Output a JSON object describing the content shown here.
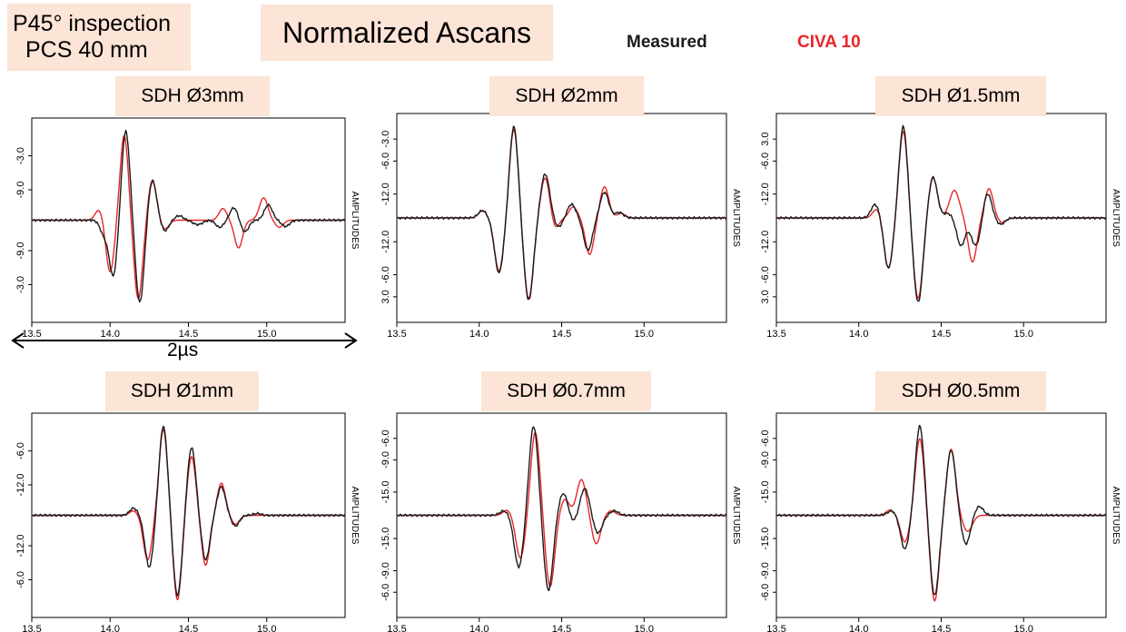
{
  "header": {
    "inspection_line1": "P45° inspection",
    "inspection_line2": "PCS 40 mm",
    "title": "Normalized Ascans"
  },
  "legend": {
    "measured_label": "Measured",
    "measured_color": "#1a1a1a",
    "civa_label": "CIVA 10",
    "civa_color": "#e8262a"
  },
  "scale_bar": {
    "label": "2µs",
    "duration_us": 2
  },
  "chart_data": [
    {
      "type": "line",
      "title": "SDH Ø3mm",
      "ylabel": "AMPLITUDES",
      "xlim": [
        13.5,
        15.5
      ],
      "xticks": [
        "13.5",
        "14.0",
        "14.5",
        "15.0"
      ],
      "yticks": [
        "-3.0",
        "-9.0",
        "-9.0",
        "-3.0"
      ],
      "series": [
        {
          "name": "Measured",
          "pulses": [
            [
              13.96,
              -0.15,
              0.024
            ],
            [
              14.02,
              -0.62,
              0.026
            ],
            [
              14.1,
              1.0,
              0.026
            ],
            [
              14.19,
              -0.92,
              0.027
            ],
            [
              14.27,
              0.45,
              0.026
            ],
            [
              14.35,
              -0.12,
              0.024
            ],
            [
              14.44,
              0.05,
              0.025
            ],
            [
              14.56,
              -0.05,
              0.03
            ],
            [
              14.7,
              -0.08,
              0.025
            ],
            [
              14.79,
              0.14,
              0.025
            ],
            [
              14.86,
              -0.13,
              0.025
            ],
            [
              15.01,
              0.17,
              0.026
            ],
            [
              15.12,
              -0.07,
              0.025
            ]
          ]
        },
        {
          "name": "CIVA 10",
          "pulses": [
            [
              13.93,
              0.12,
              0.025
            ],
            [
              14.0,
              -0.58,
              0.026
            ],
            [
              14.09,
              0.95,
              0.026
            ],
            [
              14.18,
              -0.88,
              0.027
            ],
            [
              14.27,
              0.45,
              0.026
            ],
            [
              14.35,
              -0.1,
              0.025
            ],
            [
              14.72,
              0.13,
              0.025
            ],
            [
              14.82,
              -0.31,
              0.026
            ],
            [
              14.98,
              0.25,
              0.027
            ],
            [
              15.08,
              -0.08,
              0.025
            ]
          ]
        }
      ]
    },
    {
      "type": "line",
      "title": "SDH Ø2mm",
      "ylabel": "AMPLITUDES",
      "xlim": [
        13.5,
        15.5
      ],
      "xticks": [
        "13.5",
        "14.0",
        "14.5",
        "15.0"
      ],
      "yticks": [
        "-3.0",
        "-6.0",
        "-12.0",
        "-12.0",
        "-6.0",
        "3.0"
      ],
      "series": [
        {
          "name": "Measured",
          "pulses": [
            [
              14.02,
              0.08,
              0.025
            ],
            [
              14.12,
              -0.6,
              0.027
            ],
            [
              14.21,
              1.0,
              0.026
            ],
            [
              14.3,
              -0.9,
              0.028
            ],
            [
              14.4,
              0.48,
              0.027
            ],
            [
              14.48,
              -0.1,
              0.024
            ],
            [
              14.56,
              0.15,
              0.025
            ],
            [
              14.66,
              -0.35,
              0.026
            ],
            [
              14.76,
              0.28,
              0.026
            ],
            [
              14.85,
              0.06,
              0.025
            ]
          ]
        },
        {
          "name": "CIVA 10",
          "pulses": [
            [
              14.02,
              0.08,
              0.025
            ],
            [
              14.12,
              -0.58,
              0.027
            ],
            [
              14.21,
              0.97,
              0.026
            ],
            [
              14.3,
              -0.88,
              0.028
            ],
            [
              14.4,
              0.44,
              0.027
            ],
            [
              14.46,
              -0.12,
              0.024
            ],
            [
              14.57,
              0.12,
              0.025
            ],
            [
              14.67,
              -0.4,
              0.026
            ],
            [
              14.76,
              0.34,
              0.026
            ],
            [
              14.86,
              0.05,
              0.025
            ]
          ]
        }
      ]
    },
    {
      "type": "line",
      "title": "SDH Ø1.5mm",
      "ylabel": "AMPLITUDES",
      "xlim": [
        13.5,
        15.5
      ],
      "xticks": [
        "13.5",
        "14.0",
        "14.5",
        "15.0"
      ],
      "yticks": [
        "3.0",
        "-6.0",
        "-12.0",
        "-12.0",
        "-6.0",
        "3.0"
      ],
      "series": [
        {
          "name": "Measured",
          "pulses": [
            [
              14.1,
              0.15,
              0.025
            ],
            [
              14.18,
              -0.55,
              0.026
            ],
            [
              14.27,
              1.0,
              0.026
            ],
            [
              14.36,
              -0.92,
              0.028
            ],
            [
              14.45,
              0.45,
              0.026
            ],
            [
              14.54,
              0.05,
              0.025
            ],
            [
              14.62,
              -0.3,
              0.025
            ],
            [
              14.71,
              -0.3,
              0.03
            ],
            [
              14.78,
              0.28,
              0.025
            ],
            [
              14.86,
              -0.07,
              0.025
            ]
          ]
        },
        {
          "name": "CIVA 10",
          "pulses": [
            [
              14.11,
              0.1,
              0.025
            ],
            [
              14.18,
              -0.55,
              0.026
            ],
            [
              14.27,
              0.95,
              0.026
            ],
            [
              14.36,
              -0.88,
              0.028
            ],
            [
              14.45,
              0.44,
              0.027
            ],
            [
              14.58,
              0.3,
              0.03
            ],
            [
              14.69,
              -0.48,
              0.026
            ],
            [
              14.79,
              0.32,
              0.025
            ],
            [
              14.87,
              -0.05,
              0.025
            ]
          ]
        }
      ]
    },
    {
      "type": "line",
      "title": "SDH Ø1mm",
      "ylabel": "AMPLITUDES",
      "xlim": [
        13.5,
        15.5
      ],
      "xticks": [
        "13.5",
        "14.0",
        "14.5",
        "15.0"
      ],
      "yticks": [
        "-6.0",
        "-12.0",
        "-12.0",
        "-6.0"
      ],
      "series": [
        {
          "name": "Measured",
          "pulses": [
            [
              14.15,
              0.08,
              0.025
            ],
            [
              14.25,
              -0.58,
              0.027
            ],
            [
              14.34,
              1.0,
              0.027
            ],
            [
              14.43,
              -0.9,
              0.027
            ],
            [
              14.52,
              0.76,
              0.027
            ],
            [
              14.61,
              -0.5,
              0.026
            ],
            [
              14.71,
              0.32,
              0.026
            ],
            [
              14.8,
              -0.12,
              0.025
            ],
            [
              14.94,
              0.02,
              0.025
            ]
          ]
        },
        {
          "name": "CIVA 10",
          "pulses": [
            [
              14.15,
              0.05,
              0.025
            ],
            [
              14.24,
              -0.5,
              0.027
            ],
            [
              14.34,
              0.96,
              0.027
            ],
            [
              14.43,
              -0.95,
              0.027
            ],
            [
              14.52,
              0.66,
              0.027
            ],
            [
              14.61,
              -0.56,
              0.026
            ],
            [
              14.71,
              0.36,
              0.026
            ],
            [
              14.8,
              -0.1,
              0.025
            ]
          ]
        }
      ]
    },
    {
      "type": "line",
      "title": "SDH Ø0.7mm",
      "ylabel": "AMPLITUDES",
      "xlim": [
        13.5,
        15.5
      ],
      "xticks": [
        "13.5",
        "14.0",
        "14.5",
        "15.0"
      ],
      "yticks": [
        "-6.0",
        "-9.0",
        "-15.0",
        "-15.0",
        "-9.0",
        "-6.0"
      ],
      "series": [
        {
          "name": "Measured",
          "pulses": [
            [
              14.15,
              0.05,
              0.025
            ],
            [
              14.24,
              -0.58,
              0.027
            ],
            [
              14.33,
              1.0,
              0.027
            ],
            [
              14.42,
              -0.84,
              0.027
            ],
            [
              14.51,
              0.25,
              0.027
            ],
            [
              14.57,
              -0.08,
              0.024
            ],
            [
              14.64,
              0.3,
              0.027
            ],
            [
              14.72,
              -0.2,
              0.026
            ],
            [
              14.82,
              0.05,
              0.025
            ]
          ]
        },
        {
          "name": "CIVA 10",
          "pulses": [
            [
              14.17,
              0.06,
              0.025
            ],
            [
              14.25,
              -0.48,
              0.027
            ],
            [
              14.34,
              0.93,
              0.027
            ],
            [
              14.43,
              -0.8,
              0.027
            ],
            [
              14.52,
              0.18,
              0.027
            ],
            [
              14.62,
              0.4,
              0.028
            ],
            [
              14.71,
              -0.32,
              0.026
            ],
            [
              14.8,
              0.05,
              0.025
            ]
          ]
        }
      ]
    },
    {
      "type": "line",
      "title": "SDH Ø0.5mm",
      "ylabel": "AMPLITUDES",
      "xlim": [
        13.5,
        15.5
      ],
      "xticks": [
        "13.5",
        "14.0",
        "14.5",
        "15.0"
      ],
      "yticks": [
        "-6.0",
        "-9.0",
        "-15.0",
        "-15.0",
        "-9.0",
        "-6.0"
      ],
      "series": [
        {
          "name": "Measured",
          "pulses": [
            [
              14.2,
              0.05,
              0.025
            ],
            [
              14.28,
              -0.38,
              0.026
            ],
            [
              14.37,
              1.0,
              0.027
            ],
            [
              14.46,
              -0.9,
              0.027
            ],
            [
              14.56,
              0.73,
              0.027
            ],
            [
              14.65,
              -0.32,
              0.026
            ],
            [
              14.73,
              0.1,
              0.025
            ]
          ]
        },
        {
          "name": "CIVA 10",
          "pulses": [
            [
              14.19,
              0.06,
              0.025
            ],
            [
              14.28,
              -0.3,
              0.026
            ],
            [
              14.37,
              0.86,
              0.027
            ],
            [
              14.46,
              -0.96,
              0.027
            ],
            [
              14.56,
              0.74,
              0.027
            ],
            [
              14.66,
              -0.18,
              0.028
            ]
          ]
        }
      ]
    }
  ]
}
